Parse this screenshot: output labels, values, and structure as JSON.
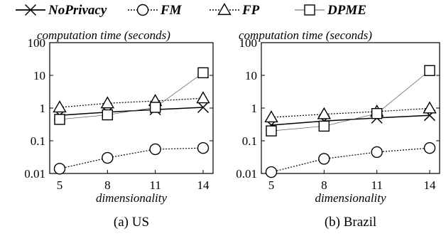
{
  "legend": [
    {
      "name": "NoPrivacy",
      "marker": "x-mark",
      "line": "solid",
      "color": "#000000"
    },
    {
      "name": "FM",
      "marker": "circle",
      "line": "dotted",
      "color": "#000000"
    },
    {
      "name": "FP",
      "marker": "triangle",
      "line": "dotted",
      "color": "#000000"
    },
    {
      "name": "DPME",
      "marker": "square",
      "line": "thin",
      "color": "#000000"
    }
  ],
  "chart_data": [
    {
      "type": "line",
      "caption": "(a) US",
      "ylabel": "computation time (seconds)",
      "xlabel": "dimensionality",
      "x": [
        5,
        8,
        11,
        14
      ],
      "xticks": [
        "5",
        "8",
        "11",
        "14"
      ],
      "yscale": "log",
      "ylim": [
        0.01,
        100
      ],
      "yticks": [
        "0.01",
        "0.1",
        "1",
        "10",
        "100"
      ],
      "series": [
        {
          "name": "NoPrivacy",
          "values": [
            0.6,
            0.75,
            0.9,
            1.05
          ]
        },
        {
          "name": "FM",
          "values": [
            0.014,
            0.03,
            0.055,
            0.06
          ]
        },
        {
          "name": "FP",
          "values": [
            1.05,
            1.4,
            1.65,
            2.0
          ]
        },
        {
          "name": "DPME",
          "values": [
            0.45,
            0.62,
            1.05,
            12
          ]
        }
      ]
    },
    {
      "type": "line",
      "caption": "(b) Brazil",
      "ylabel": "computation time (seconds)",
      "xlabel": "dimensionality",
      "x": [
        5,
        8,
        11,
        14
      ],
      "xticks": [
        "5",
        "8",
        "11",
        "14"
      ],
      "yscale": "log",
      "ylim": [
        0.01,
        100
      ],
      "yticks": [
        "0.01",
        "0.1",
        "1",
        "10",
        "100"
      ],
      "series": [
        {
          "name": "NoPrivacy",
          "values": [
            0.3,
            0.4,
            0.5,
            0.6
          ]
        },
        {
          "name": "FM",
          "values": [
            0.011,
            0.028,
            0.045,
            0.06
          ]
        },
        {
          "name": "FP",
          "values": [
            0.52,
            0.65,
            0.78,
            0.98
          ]
        },
        {
          "name": "DPME",
          "values": [
            0.2,
            0.28,
            0.68,
            14
          ]
        }
      ]
    }
  ]
}
